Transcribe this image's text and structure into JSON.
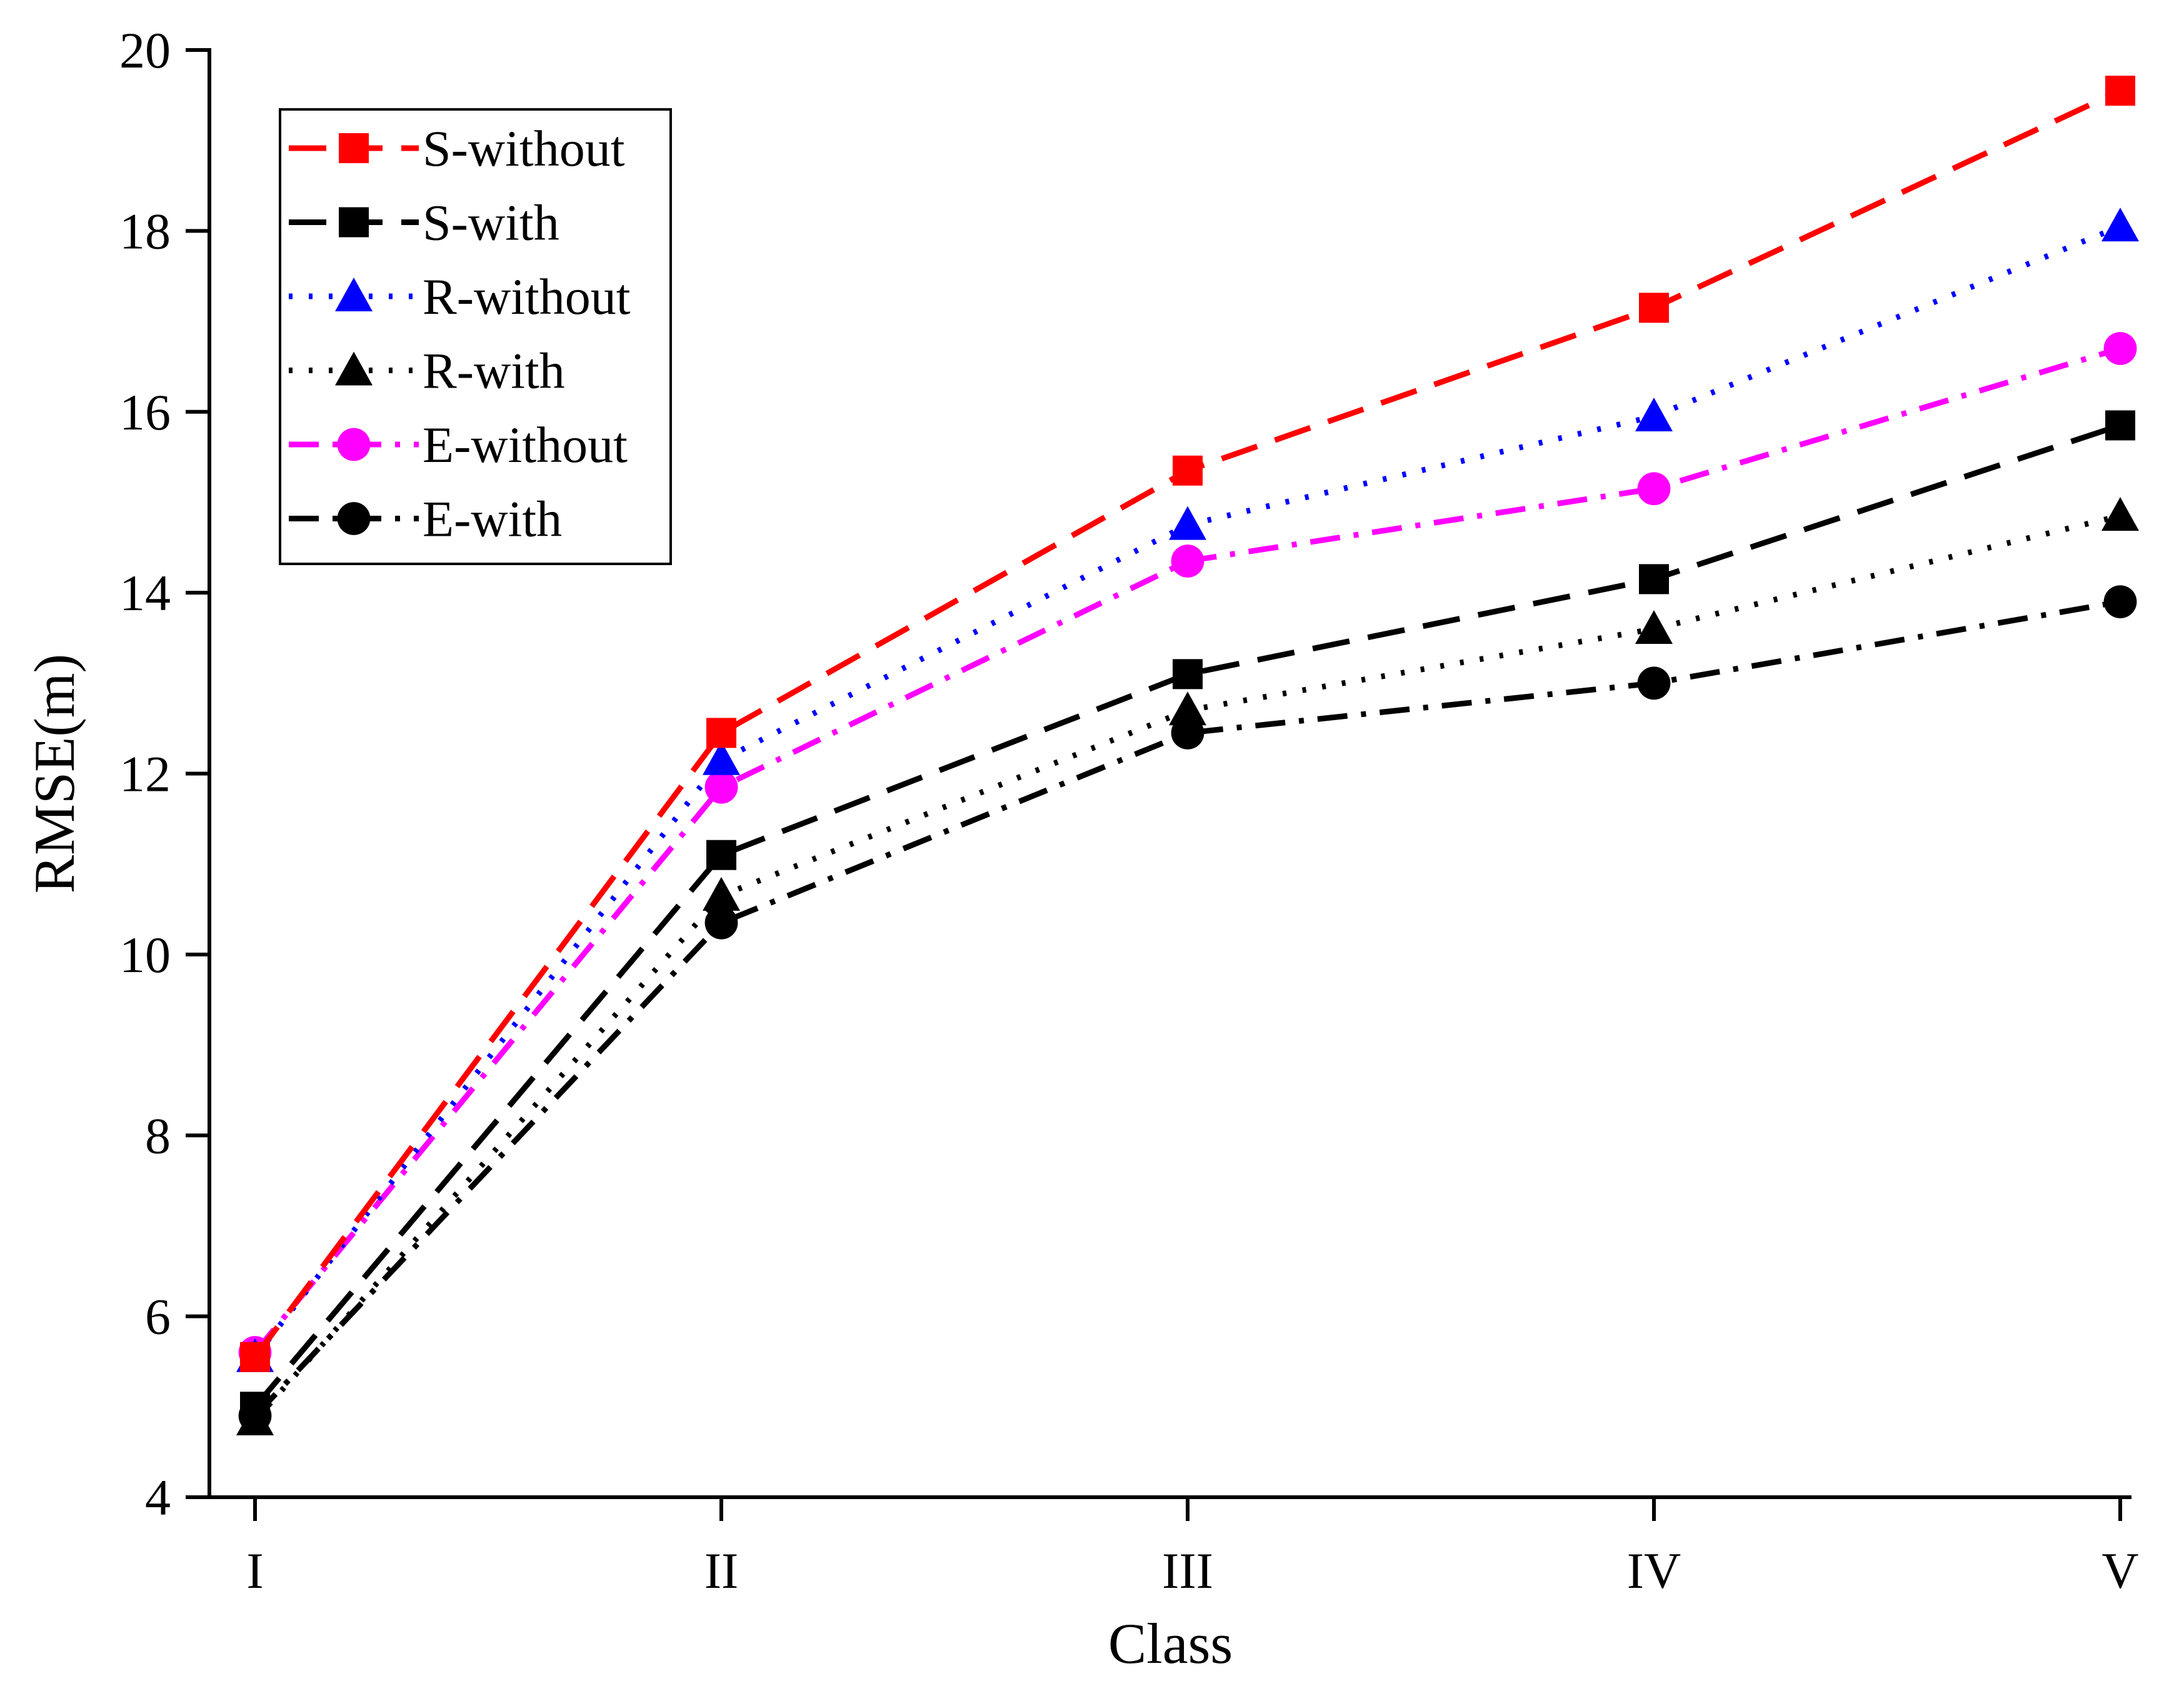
{
  "chart_data": {
    "type": "line",
    "title": "",
    "xlabel": "Class",
    "ylabel": "RMSE(m)",
    "categories": [
      "I",
      "II",
      "III",
      "IV",
      "V"
    ],
    "ylim": [
      4,
      20
    ],
    "yticks": [
      "4",
      "6",
      "8",
      "10",
      "12",
      "14",
      "16",
      "18",
      "20"
    ],
    "grid": false,
    "legend_position": "top-left",
    "series": [
      {
        "name": "S-without",
        "values": [
          5.55,
          12.45,
          15.35,
          17.15,
          19.55
        ],
        "color": "#ff0000",
        "marker": "square",
        "dash": "dashed"
      },
      {
        "name": "S-with",
        "values": [
          5.0,
          11.1,
          13.1,
          14.15,
          15.85
        ],
        "color": "#000000",
        "marker": "square",
        "dash": "dashed"
      },
      {
        "name": "R-without",
        "values": [
          5.55,
          12.15,
          14.75,
          15.95,
          18.05
        ],
        "color": "#0000ff",
        "marker": "triangle",
        "dash": "dotted"
      },
      {
        "name": "R-with",
        "values": [
          4.85,
          10.65,
          12.7,
          13.6,
          14.85
        ],
        "color": "#000000",
        "marker": "triangle",
        "dash": "dotted"
      },
      {
        "name": "E-without",
        "values": [
          5.6,
          11.85,
          14.35,
          15.15,
          16.7
        ],
        "color": "#ff00ff",
        "marker": "circle",
        "dash": "dashdot"
      },
      {
        "name": "E-with",
        "values": [
          4.9,
          10.35,
          12.45,
          13.0,
          13.9
        ],
        "color": "#000000",
        "marker": "circle",
        "dash": "dashdot"
      }
    ]
  }
}
